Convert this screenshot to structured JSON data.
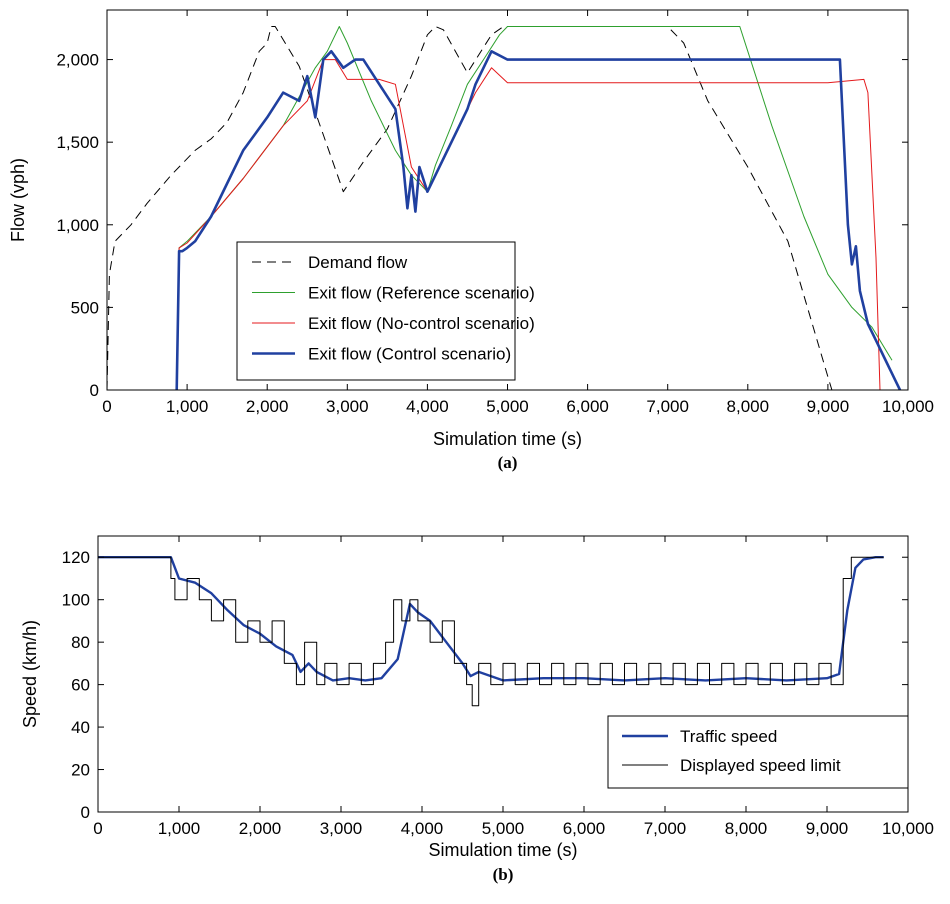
{
  "chart_data": [
    {
      "type": "line",
      "caption": "(a)",
      "xlabel": "Simulation time (s)",
      "ylabel": "Flow (vph)",
      "xlim": [
        0,
        10000
      ],
      "ylim": [
        0,
        2300
      ],
      "xticks": [
        0,
        1000,
        2000,
        3000,
        4000,
        5000,
        6000,
        7000,
        8000,
        9000,
        10000
      ],
      "xtick_labels": [
        "0",
        "1,000",
        "2,000",
        "3,000",
        "4,000",
        "5,000",
        "6,000",
        "7,000",
        "8,000",
        "9,000",
        "10,000"
      ],
      "yticks": [
        0,
        500,
        1000,
        1500,
        2000
      ],
      "ytick_labels": [
        "0",
        "500",
        "1,000",
        "1,500",
        "2,000"
      ],
      "legend_position": "lower-center",
      "series": [
        {
          "name": "Demand flow",
          "color": "#000000",
          "style": "dashed",
          "width": 1,
          "x": [
            0,
            30,
            100,
            300,
            500,
            800,
            1100,
            1300,
            1500,
            1700,
            1900,
            2000,
            2050,
            2100,
            2400,
            2950,
            3200,
            3500,
            3800,
            4000,
            4100,
            4200,
            4500,
            4800,
            4950,
            5000,
            5500,
            6000,
            6500,
            7000,
            7200,
            7500,
            8000,
            8500,
            9000,
            9050
          ],
          "y": [
            0,
            700,
            900,
            1000,
            1130,
            1300,
            1450,
            1520,
            1620,
            1800,
            2050,
            2100,
            2200,
            2200,
            1960,
            1200,
            1380,
            1580,
            1900,
            2150,
            2200,
            2180,
            1920,
            2150,
            2200,
            2200,
            2200,
            2200,
            2200,
            2200,
            2100,
            1750,
            1350,
            900,
            80,
            0
          ]
        },
        {
          "name": "Exit flow (Reference scenario)",
          "color": "#2ea02e",
          "style": "solid",
          "width": 1,
          "x": [
            870,
            900,
            1000,
            1300,
            1700,
            2200,
            2600,
            2750,
            2900,
            3000,
            3300,
            3600,
            3800,
            4000,
            4100,
            4300,
            4500,
            4700,
            4900,
            5000,
            5300,
            5800,
            6500,
            7000,
            7500,
            7900,
            8000,
            8300,
            8700,
            9000,
            9300,
            9550,
            9800
          ],
          "y": [
            0,
            860,
            900,
            1050,
            1280,
            1600,
            1950,
            2050,
            2200,
            2100,
            1750,
            1450,
            1300,
            1200,
            1360,
            1600,
            1850,
            2000,
            2150,
            2200,
            2200,
            2200,
            2200,
            2200,
            2200,
            2200,
            2050,
            1600,
            1050,
            700,
            500,
            380,
            180
          ]
        },
        {
          "name": "Exit flow (No-control scenario)",
          "color": "#e41a1c",
          "style": "solid",
          "width": 1,
          "x": [
            870,
            900,
            1000,
            1300,
            1700,
            2200,
            2500,
            2700,
            2850,
            3000,
            3200,
            3400,
            3600,
            3700,
            3800,
            4000,
            4200,
            4400,
            4600,
            4800,
            5000,
            5500,
            6000,
            6500,
            7000,
            7500,
            8000,
            8500,
            9000,
            9450,
            9500,
            9600,
            9650
          ],
          "y": [
            0,
            860,
            890,
            1050,
            1280,
            1600,
            1750,
            2000,
            2000,
            1880,
            1880,
            1880,
            1850,
            1600,
            1350,
            1200,
            1400,
            1600,
            1800,
            1950,
            1860,
            1860,
            1860,
            1860,
            1860,
            1860,
            1860,
            1860,
            1860,
            1880,
            1800,
            800,
            0
          ]
        },
        {
          "name": "Exit flow (Control scenario)",
          "color": "#2040a0",
          "style": "solid",
          "width": 2.6,
          "x": [
            870,
            900,
            940,
            1000,
            1100,
            1300,
            1500,
            1700,
            2000,
            2200,
            2400,
            2500,
            2600,
            2700,
            2800,
            2950,
            3100,
            3200,
            3400,
            3600,
            3700,
            3750,
            3800,
            3850,
            3900,
            4000,
            4100,
            4200,
            4400,
            4500,
            4600,
            4700,
            4800,
            5000,
            5500,
            6000,
            6500,
            7000,
            7500,
            8000,
            8500,
            9000,
            9150,
            9250,
            9300,
            9350,
            9400,
            9500,
            9600,
            9700,
            9900
          ],
          "y": [
            0,
            840,
            840,
            860,
            900,
            1050,
            1250,
            1450,
            1650,
            1800,
            1750,
            1900,
            1650,
            2000,
            2050,
            1950,
            2000,
            2000,
            1850,
            1700,
            1350,
            1100,
            1300,
            1080,
            1350,
            1200,
            1300,
            1400,
            1600,
            1700,
            1850,
            1950,
            2050,
            2000,
            2000,
            2000,
            2000,
            2000,
            2000,
            2000,
            2000,
            2000,
            2000,
            1000,
            760,
            870,
            600,
            400,
            300,
            200,
            0
          ]
        }
      ]
    },
    {
      "type": "line",
      "caption": "(b)",
      "xlabel": "Simulation time (s)",
      "ylabel": "Speed (km/h)",
      "xlim": [
        0,
        10000
      ],
      "ylim": [
        0,
        130
      ],
      "xticks": [
        0,
        1000,
        2000,
        3000,
        4000,
        5000,
        6000,
        7000,
        8000,
        9000,
        10000
      ],
      "xtick_labels": [
        "0",
        "1,000",
        "2,000",
        "3,000",
        "4,000",
        "5,000",
        "6,000",
        "7,000",
        "8,000",
        "9,000",
        "10,000"
      ],
      "yticks": [
        0,
        20,
        40,
        60,
        80,
        100,
        120
      ],
      "ytick_labels": [
        "0",
        "20",
        "40",
        "60",
        "80",
        "100",
        "120"
      ],
      "legend_position": "lower-right",
      "series": [
        {
          "name": "Traffic speed",
          "color": "#2040a0",
          "style": "solid",
          "width": 2.4,
          "x": [
            0,
            900,
            1000,
            1200,
            1400,
            1600,
            1800,
            2000,
            2200,
            2400,
            2500,
            2600,
            2700,
            2900,
            3100,
            3300,
            3500,
            3700,
            3850,
            3950,
            4100,
            4300,
            4500,
            4600,
            4700,
            5000,
            5500,
            6000,
            6500,
            7000,
            7500,
            8000,
            8500,
            9000,
            9150,
            9250,
            9350,
            9450,
            9600,
            9700
          ],
          "y": [
            120,
            120,
            110,
            108,
            103,
            95,
            88,
            84,
            78,
            74,
            66,
            70,
            66,
            62,
            63,
            62,
            63,
            72,
            98,
            94,
            90,
            80,
            70,
            64,
            66,
            62,
            63,
            63,
            62,
            63,
            62,
            63,
            62,
            63,
            65,
            95,
            115,
            119,
            120,
            120
          ]
        },
        {
          "name": "Displayed speed limit",
          "color": "#000000",
          "style": "steps",
          "width": 1,
          "x": [
            0,
            900,
            950,
            1100,
            1250,
            1400,
            1550,
            1700,
            1850,
            2000,
            2150,
            2300,
            2450,
            2550,
            2700,
            2800,
            2950,
            3100,
            3250,
            3400,
            3550,
            3650,
            3750,
            3850,
            3950,
            4100,
            4250,
            4400,
            4550,
            4620,
            4700,
            4850,
            5000,
            5150,
            5300,
            5450,
            5600,
            5750,
            5900,
            6050,
            6200,
            6350,
            6500,
            6650,
            6800,
            6950,
            7100,
            7250,
            7400,
            7550,
            7700,
            7850,
            8000,
            8150,
            8300,
            8450,
            8600,
            8750,
            8900,
            9050,
            9200,
            9300,
            9400,
            9700
          ],
          "y": [
            120,
            110,
            100,
            110,
            100,
            90,
            100,
            80,
            90,
            80,
            90,
            70,
            60,
            80,
            60,
            70,
            60,
            70,
            60,
            70,
            80,
            100,
            90,
            100,
            90,
            80,
            90,
            70,
            60,
            50,
            70,
            60,
            70,
            60,
            70,
            60,
            70,
            60,
            70,
            60,
            70,
            60,
            70,
            60,
            70,
            60,
            70,
            60,
            70,
            60,
            70,
            60,
            70,
            60,
            70,
            60,
            70,
            60,
            70,
            60,
            110,
            120,
            120,
            120
          ]
        }
      ]
    }
  ]
}
